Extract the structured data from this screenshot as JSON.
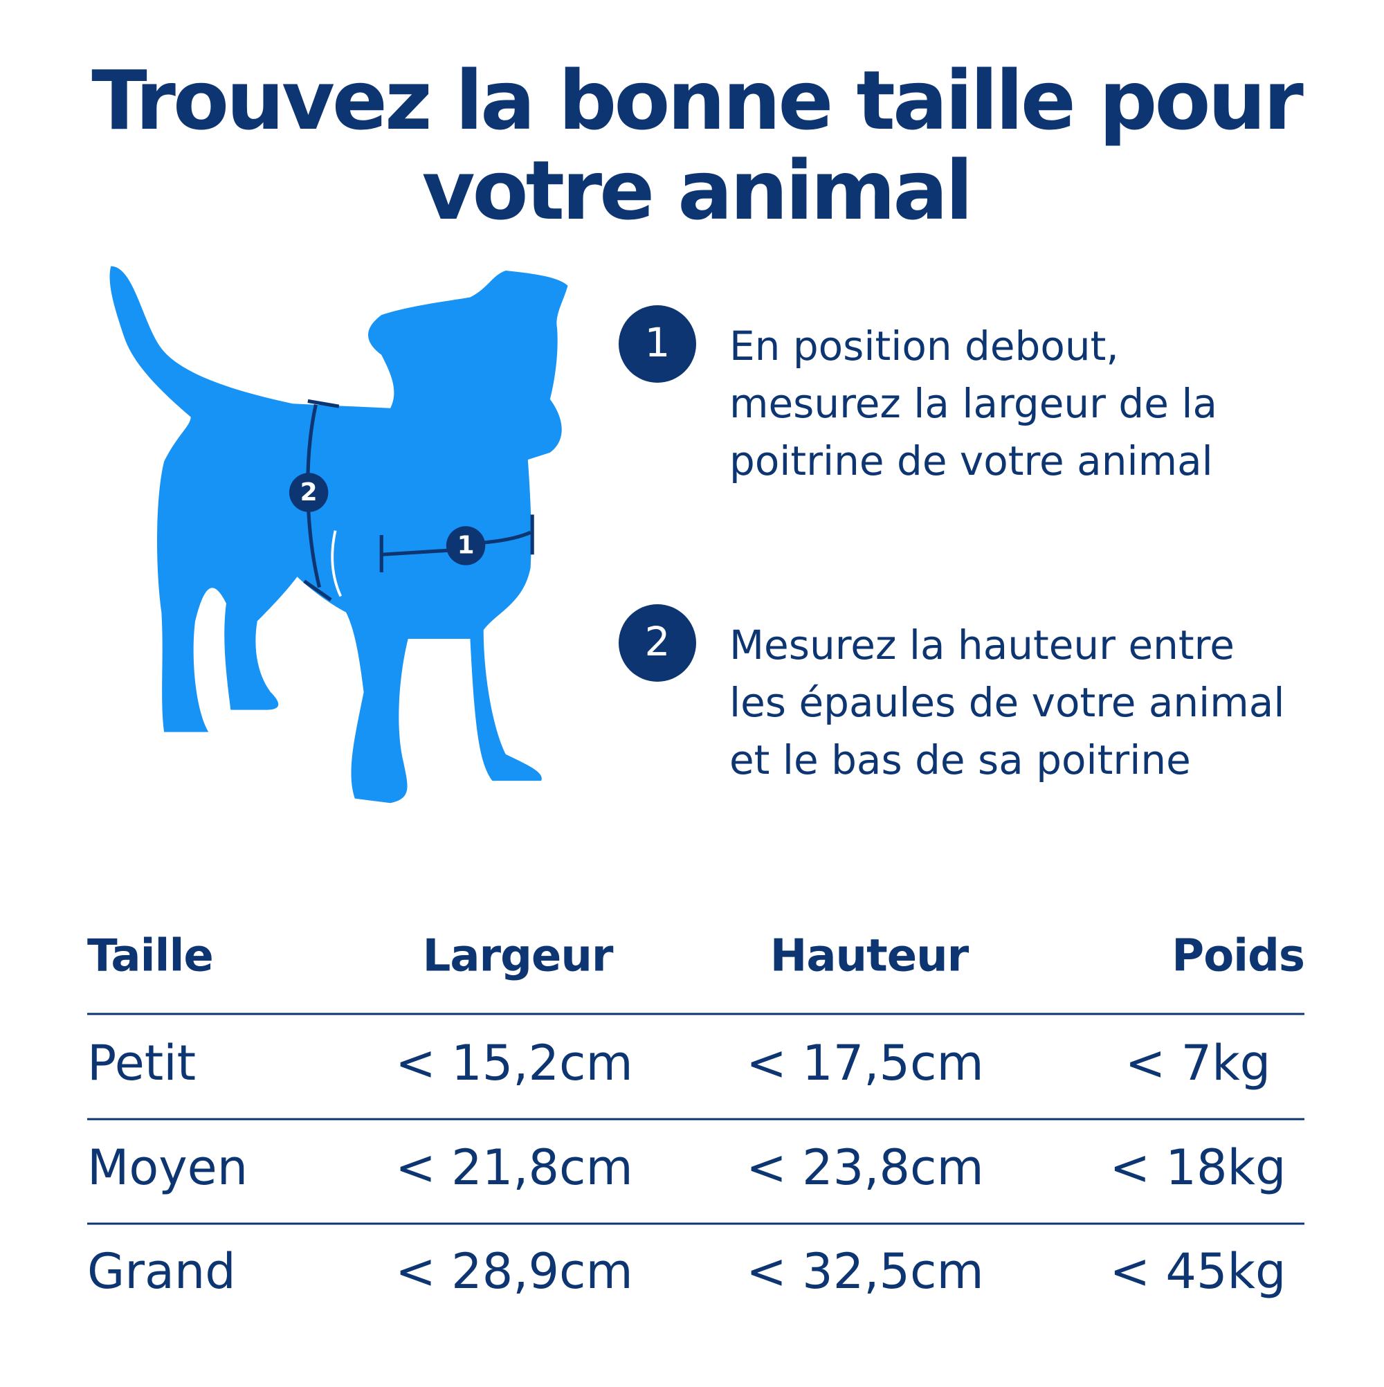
{
  "header": {
    "title_lines": [
      "Trouvez la bonne taille pour",
      "votre animal"
    ]
  },
  "steps": [
    {
      "number": "1",
      "lines": [
        "En position debout,",
        "mesurez la largeur de la",
        "poitrine de votre animal"
      ]
    },
    {
      "number": "2",
      "lines": [
        "Mesurez la hauteur entre",
        "les épaules de votre animal",
        "et le bas de sa poitrine"
      ]
    }
  ],
  "table": {
    "headers": [
      "Taille",
      "Largeur",
      "Hauteur",
      "Poids"
    ],
    "rows": [
      [
        "Petit",
        "< 15,2cm",
        "< 17,5cm",
        "< 7kg"
      ],
      [
        "Moyen",
        "< 21,8cm",
        "< 23,8cm",
        "< 18kg"
      ],
      [
        "Grand",
        "< 28,9cm",
        "< 32,5cm",
        "< 45kg"
      ]
    ]
  }
}
